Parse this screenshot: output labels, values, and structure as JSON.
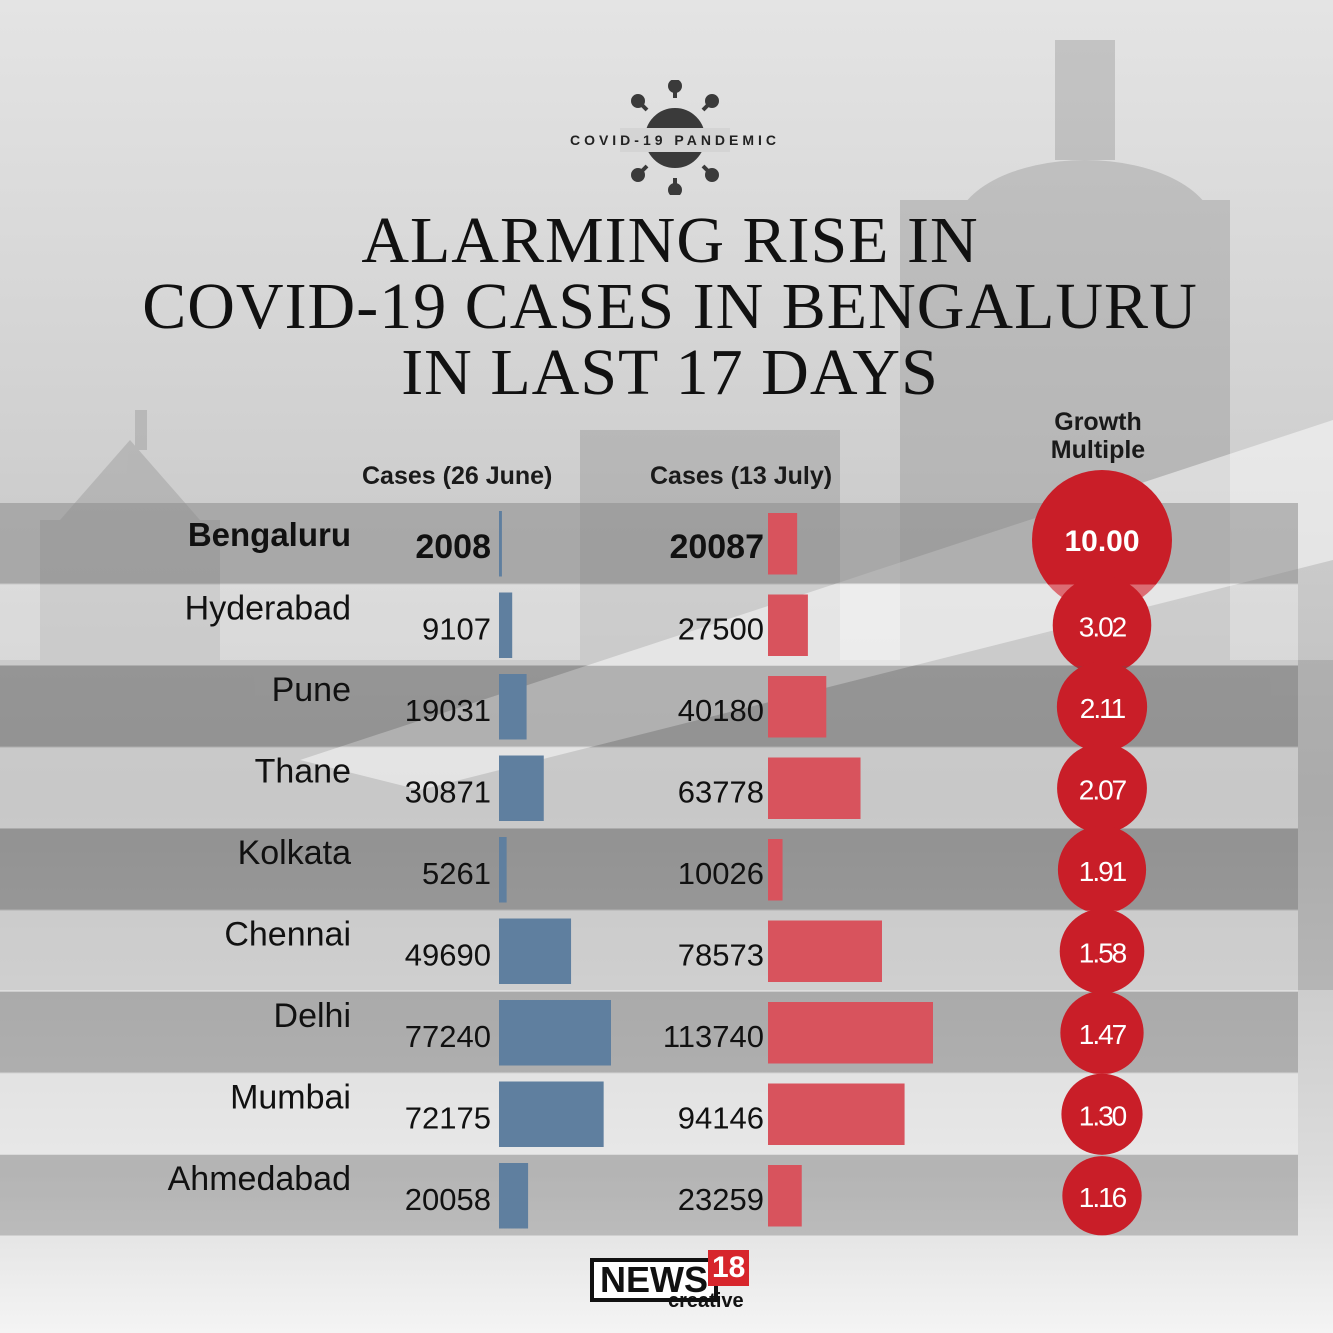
{
  "badge": {
    "text": "COVID-19 PANDEMIC",
    "icon": "virus-icon"
  },
  "title_lines": [
    "ALARMING RISE IN",
    "COVID-19 CASES IN BENGALURU",
    "IN LAST 17 DAYS"
  ],
  "columns": {
    "june": "Cases (26 June)",
    "july": "Cases (13 July)",
    "growth_line1": "Growth",
    "growth_line2": "Multiple"
  },
  "colors": {
    "june_bar": "#5f7f9f",
    "july_bar": "#d8535d",
    "bubble": "#c91e28"
  },
  "chart_data": {
    "type": "table",
    "rows": [
      {
        "city": "Bengaluru",
        "june": 2008,
        "july": 20087,
        "growth": "10.00",
        "highlight": true
      },
      {
        "city": "Hyderabad",
        "june": 9107,
        "july": 27500,
        "growth": "3.02"
      },
      {
        "city": "Pune",
        "june": 19031,
        "july": 40180,
        "growth": "2.11"
      },
      {
        "city": "Thane",
        "june": 30871,
        "july": 63778,
        "growth": "2.07"
      },
      {
        "city": "Kolkata",
        "june": 5261,
        "july": 10026,
        "growth": "1.91"
      },
      {
        "city": "Chennai",
        "june": 49690,
        "july": 78573,
        "growth": "1.58"
      },
      {
        "city": "Delhi",
        "june": 77240,
        "july": 113740,
        "growth": "1.47"
      },
      {
        "city": "Mumbai",
        "june": 72175,
        "july": 94146,
        "growth": "1.30"
      },
      {
        "city": "Ahmedabad",
        "june": 20058,
        "july": 23259,
        "growth": "1.16"
      }
    ]
  },
  "logo": {
    "brand": "NEWS",
    "number": "18",
    "sub": "creative"
  }
}
